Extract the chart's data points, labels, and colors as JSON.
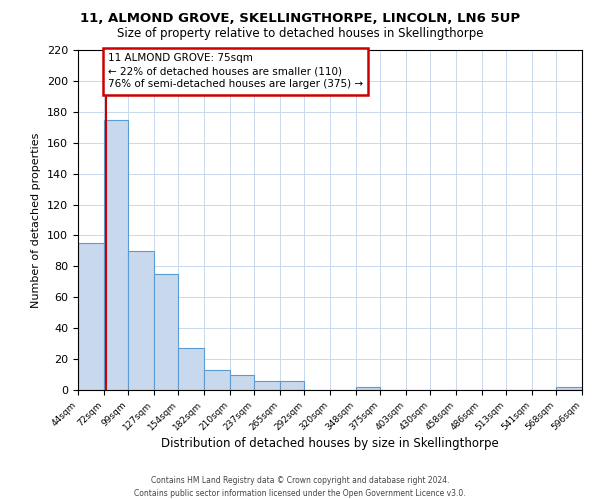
{
  "title": "11, ALMOND GROVE, SKELLINGTHORPE, LINCOLN, LN6 5UP",
  "subtitle": "Size of property relative to detached houses in Skellingthorpe",
  "xlabel": "Distribution of detached houses by size in Skellingthorpe",
  "ylabel": "Number of detached properties",
  "footer_line1": "Contains HM Land Registry data © Crown copyright and database right 2024.",
  "footer_line2": "Contains public sector information licensed under the Open Government Licence v3.0.",
  "bin_edges": [
    44,
    72,
    99,
    127,
    154,
    182,
    210,
    237,
    265,
    292,
    320,
    348,
    375,
    403,
    430,
    458,
    486,
    513,
    541,
    568,
    596
  ],
  "bin_labels": [
    "44sqm",
    "72sqm",
    "99sqm",
    "127sqm",
    "154sqm",
    "182sqm",
    "210sqm",
    "237sqm",
    "265sqm",
    "292sqm",
    "320sqm",
    "348sqm",
    "375sqm",
    "403sqm",
    "430sqm",
    "458sqm",
    "486sqm",
    "513sqm",
    "541sqm",
    "568sqm",
    "596sqm"
  ],
  "counts": [
    95,
    175,
    90,
    75,
    27,
    13,
    10,
    6,
    6,
    0,
    0,
    2,
    0,
    0,
    0,
    0,
    0,
    0,
    0,
    2
  ],
  "bar_color": "#c8d9ed",
  "bar_edge_color": "#5b9bd5",
  "property_value": 75,
  "property_line_color": "#cc0000",
  "annotation_title": "11 ALMOND GROVE: 75sqm",
  "annotation_line1": "← 22% of detached houses are smaller (110)",
  "annotation_line2": "76% of semi-detached houses are larger (375) →",
  "annotation_box_edge_color": "#cc0000",
  "ylim": [
    0,
    220
  ],
  "yticks": [
    0,
    20,
    40,
    60,
    80,
    100,
    120,
    140,
    160,
    180,
    200,
    220
  ],
  "background_color": "#ffffff",
  "grid_color": "#c8d9ed"
}
